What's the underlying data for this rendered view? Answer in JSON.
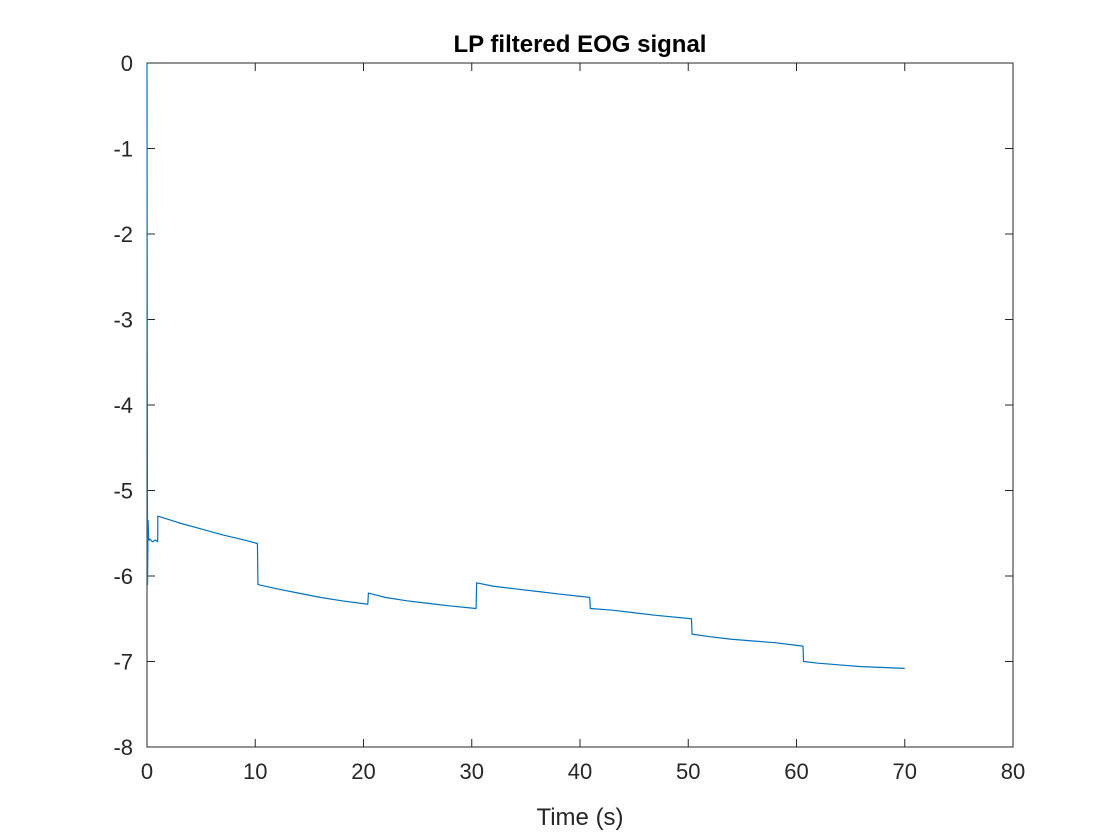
{
  "chart_data": {
    "type": "line",
    "title": "LP filtered EOG signal",
    "xlabel": "Time (s)",
    "ylabel": "",
    "xlim": [
      0,
      80
    ],
    "ylim": [
      -8,
      0
    ],
    "xticks": [
      0,
      10,
      20,
      30,
      40,
      50,
      60,
      70,
      80
    ],
    "yticks": [
      0,
      -1,
      -2,
      -3,
      -4,
      -5,
      -6,
      -7,
      -8
    ],
    "grid": false,
    "box": true,
    "colors": {
      "series": "#0072BD",
      "axes": "#262626"
    },
    "series": [
      {
        "name": "",
        "x": [
          0,
          0.02,
          0.05,
          0.1,
          0.15,
          0.2,
          0.3,
          0.5,
          0.8,
          0.99,
          1.0,
          1.5,
          3,
          5,
          7,
          9,
          10.2,
          10.25,
          12,
          14,
          16,
          18,
          20.4,
          20.45,
          22,
          24,
          26,
          28,
          30.4,
          30.45,
          32,
          34,
          36,
          38,
          40.9,
          40.95,
          43,
          45,
          47,
          50.3,
          50.35,
          52,
          54,
          56,
          58,
          60.6,
          60.65,
          62,
          64,
          66,
          68,
          70
        ],
        "y": [
          0,
          -3.0,
          -6.1,
          -5.35,
          -5.55,
          -5.58,
          -5.57,
          -5.6,
          -5.58,
          -5.6,
          -5.3,
          -5.32,
          -5.38,
          -5.45,
          -5.52,
          -5.58,
          -5.62,
          -6.1,
          -6.15,
          -6.2,
          -6.25,
          -6.29,
          -6.33,
          -6.2,
          -6.25,
          -6.29,
          -6.32,
          -6.35,
          -6.38,
          -6.08,
          -6.12,
          -6.15,
          -6.18,
          -6.21,
          -6.25,
          -6.38,
          -6.4,
          -6.43,
          -6.46,
          -6.5,
          -6.68,
          -6.71,
          -6.74,
          -6.76,
          -6.78,
          -6.82,
          -7.0,
          -7.02,
          -7.04,
          -7.06,
          -7.07,
          -7.08
        ]
      }
    ]
  }
}
